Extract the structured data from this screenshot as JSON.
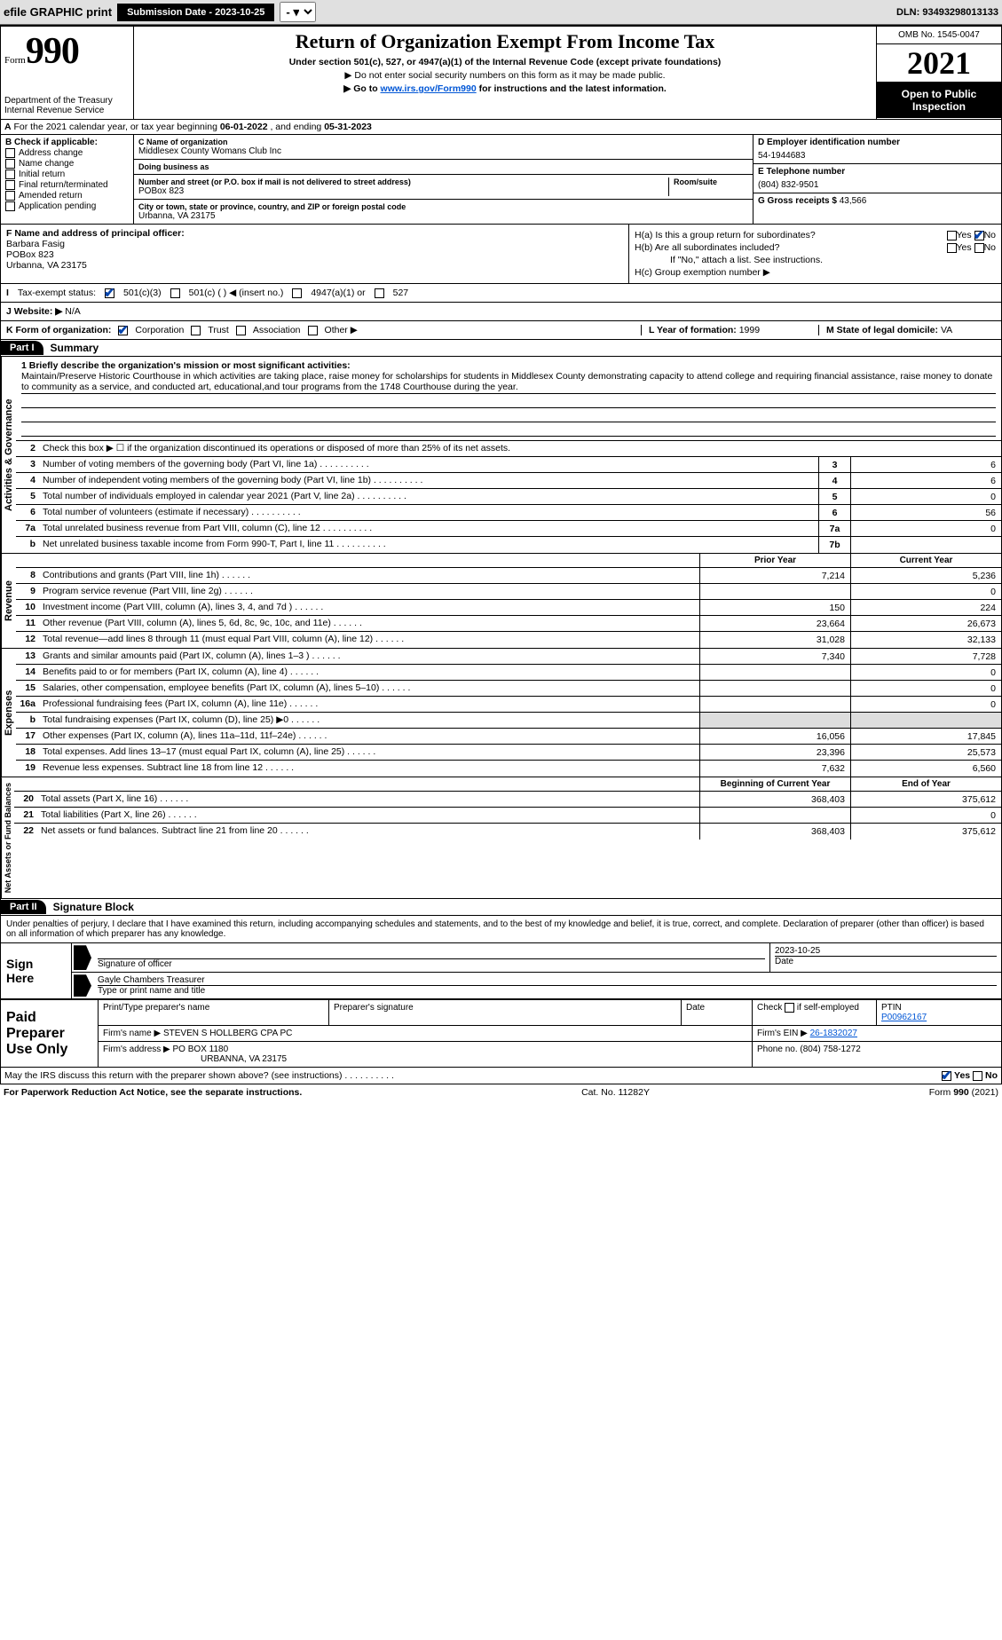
{
  "topbar": {
    "efile": "efile GRAPHIC print",
    "submission_label": "Submission Date - 2023-10-25",
    "dln": "DLN: 93493298013133"
  },
  "header": {
    "form_label": "Form",
    "form_number": "990",
    "title": "Return of Organization Exempt From Income Tax",
    "subtitle": "Under section 501(c), 527, or 4947(a)(1) of the Internal Revenue Code (except private foundations)",
    "ssn_note": "▶ Do not enter social security numbers on this form as it may be made public.",
    "goto_prefix": "▶ Go to ",
    "goto_link": "www.irs.gov/Form990",
    "goto_suffix": " for instructions and the latest information.",
    "dept": "Department of the Treasury",
    "irs": "Internal Revenue Service",
    "omb": "OMB No. 1545-0047",
    "year": "2021",
    "open_pub": "Open to Public Inspection"
  },
  "A": {
    "text_a": "For the 2021 calendar year, or tax year beginning ",
    "begin": "06-01-2022",
    "text_b": " , and ending ",
    "end": "05-31-2023"
  },
  "B": {
    "label": "B Check if applicable:",
    "opts": [
      "Address change",
      "Name change",
      "Initial return",
      "Final return/terminated",
      "Amended return",
      "Application pending"
    ]
  },
  "C": {
    "name_lbl": "C Name of organization",
    "name": "Middlesex County Womans Club Inc",
    "dba_lbl": "Doing business as",
    "dba": "",
    "street_lbl": "Number and street (or P.O. box if mail is not delivered to street address)",
    "room_lbl": "Room/suite",
    "street": "POBox 823",
    "city_lbl": "City or town, state or province, country, and ZIP or foreign postal code",
    "city": "Urbanna, VA  23175"
  },
  "D": {
    "lbl": "D Employer identification number",
    "val": "54-1944683"
  },
  "E": {
    "lbl": "E Telephone number",
    "val": "(804) 832-9501"
  },
  "G": {
    "lbl": "G Gross receipts $",
    "val": "43,566"
  },
  "F": {
    "lbl": "F  Name and address of principal officer:",
    "name": "Barbara Fasig",
    "addr1": "POBox 823",
    "addr2": "Urbanna, VA  23175"
  },
  "H": {
    "a": "H(a)  Is this a group return for subordinates?",
    "b": "H(b)  Are all subordinates included?",
    "b_note": "If \"No,\" attach a list. See instructions.",
    "c": "H(c)  Group exemption number ▶",
    "yes": "Yes",
    "no": "No"
  },
  "I": {
    "lbl": "Tax-exempt status:",
    "o1": "501(c)(3)",
    "o2": "501(c) (  ) ◀ (insert no.)",
    "o3": "4947(a)(1) or",
    "o4": "527"
  },
  "J": {
    "lbl": "J   Website: ▶",
    "val": "N/A"
  },
  "K": {
    "lbl": "K Form of organization:",
    "o1": "Corporation",
    "o2": "Trust",
    "o3": "Association",
    "o4": "Other ▶"
  },
  "L": {
    "lbl": "L Year of formation:",
    "val": "1999"
  },
  "M": {
    "lbl": "M State of legal domicile:",
    "val": "VA"
  },
  "parts": {
    "p1": "Part I",
    "p1_title": "Summary",
    "p2": "Part II",
    "p2_title": "Signature Block"
  },
  "summary": {
    "q1_lbl": "1   Briefly describe the organization's mission or most significant activities:",
    "q1_txt": "Maintain/Preserve Historic Courthouse in which activities are taking place, raise money for scholarships for students in Middlesex County demonstrating capacity to attend college and requiring financial assistance, raise money to donate to community as a service, and conducted art, educational,and tour programs from the 1748 Courthouse during the year.",
    "q2": "Check this box ▶ ☐  if the organization discontinued its operations or disposed of more than 25% of its net assets.",
    "lines_gov": [
      {
        "n": "3",
        "t": "Number of voting members of the governing body (Part VI, line 1a)",
        "b": "3",
        "v": "6"
      },
      {
        "n": "4",
        "t": "Number of independent voting members of the governing body (Part VI, line 1b)",
        "b": "4",
        "v": "6"
      },
      {
        "n": "5",
        "t": "Total number of individuals employed in calendar year 2021 (Part V, line 2a)",
        "b": "5",
        "v": "0"
      },
      {
        "n": "6",
        "t": "Total number of volunteers (estimate if necessary)",
        "b": "6",
        "v": "56"
      },
      {
        "n": "7a",
        "t": "Total unrelated business revenue from Part VIII, column (C), line 12",
        "b": "7a",
        "v": "0"
      },
      {
        "n": "b",
        "t": "Net unrelated business taxable income from Form 990-T, Part I, line 11",
        "b": "7b",
        "v": ""
      }
    ],
    "col_prior": "Prior Year",
    "col_current": "Current Year",
    "lines_rev": [
      {
        "n": "8",
        "t": "Contributions and grants (Part VIII, line 1h)",
        "p": "7,214",
        "c": "5,236"
      },
      {
        "n": "9",
        "t": "Program service revenue (Part VIII, line 2g)",
        "p": "",
        "c": "0"
      },
      {
        "n": "10",
        "t": "Investment income (Part VIII, column (A), lines 3, 4, and 7d )",
        "p": "150",
        "c": "224"
      },
      {
        "n": "11",
        "t": "Other revenue (Part VIII, column (A), lines 5, 6d, 8c, 9c, 10c, and 11e)",
        "p": "23,664",
        "c": "26,673"
      },
      {
        "n": "12",
        "t": "Total revenue—add lines 8 through 11 (must equal Part VIII, column (A), line 12)",
        "p": "31,028",
        "c": "32,133"
      }
    ],
    "lines_exp": [
      {
        "n": "13",
        "t": "Grants and similar amounts paid (Part IX, column (A), lines 1–3 )",
        "p": "7,340",
        "c": "7,728"
      },
      {
        "n": "14",
        "t": "Benefits paid to or for members (Part IX, column (A), line 4)",
        "p": "",
        "c": "0"
      },
      {
        "n": "15",
        "t": "Salaries, other compensation, employee benefits (Part IX, column (A), lines 5–10)",
        "p": "",
        "c": "0"
      },
      {
        "n": "16a",
        "t": "Professional fundraising fees (Part IX, column (A), line 11e)",
        "p": "",
        "c": "0"
      },
      {
        "n": "b",
        "t": "Total fundraising expenses (Part IX, column (D), line 25) ▶0",
        "p": "__shade__",
        "c": "__shade__"
      },
      {
        "n": "17",
        "t": "Other expenses (Part IX, column (A), lines 11a–11d, 11f–24e)",
        "p": "16,056",
        "c": "17,845"
      },
      {
        "n": "18",
        "t": "Total expenses. Add lines 13–17 (must equal Part IX, column (A), line 25)",
        "p": "23,396",
        "c": "25,573"
      },
      {
        "n": "19",
        "t": "Revenue less expenses. Subtract line 18 from line 12",
        "p": "7,632",
        "c": "6,560"
      }
    ],
    "col_begin": "Beginning of Current Year",
    "col_end": "End of Year",
    "lines_net": [
      {
        "n": "20",
        "t": "Total assets (Part X, line 16)",
        "p": "368,403",
        "c": "375,612"
      },
      {
        "n": "21",
        "t": "Total liabilities (Part X, line 26)",
        "p": "",
        "c": "0"
      },
      {
        "n": "22",
        "t": "Net assets or fund balances. Subtract line 21 from line 20",
        "p": "368,403",
        "c": "375,612"
      }
    ],
    "vtabs": {
      "gov": "Activities & Governance",
      "rev": "Revenue",
      "exp": "Expenses",
      "net": "Net Assets or Fund Balances"
    }
  },
  "sig": {
    "decl": "Under penalties of perjury, I declare that I have examined this return, including accompanying schedules and statements, and to the best of my knowledge and belief, it is true, correct, and complete. Declaration of preparer (other than officer) is based on all information of which preparer has any knowledge.",
    "sign": "Sign",
    "here": "Here",
    "sig_of_officer": "Signature of officer",
    "date_lbl": "Date",
    "date": "2023-10-25",
    "name": "Gayle Chambers Treasurer",
    "name_lbl": "Type or print name and title"
  },
  "paid": {
    "title1": "Paid",
    "title2": "Preparer",
    "title3": "Use Only",
    "h1": "Print/Type preparer's name",
    "h2": "Preparer's signature",
    "h3": "Date",
    "h4_a": "Check",
    "h4_b": "if self-employed",
    "h5": "PTIN",
    "ptin": "P00962167",
    "firm_lbl": "Firm's name    ▶",
    "firm": "STEVEN S HOLLBERG CPA PC",
    "ein_lbl": "Firm's EIN ▶",
    "ein": "26-1832027",
    "addr_lbl": "Firm's address ▶",
    "addr1": "PO BOX 1180",
    "addr2": "URBANNA, VA  23175",
    "phone_lbl": "Phone no.",
    "phone": "(804) 758-1272"
  },
  "footer": {
    "discuss": "May the IRS discuss this return with the preparer shown above? (see instructions)",
    "yes": "Yes",
    "no": "No",
    "pra": "For Paperwork Reduction Act Notice, see the separate instructions.",
    "cat": "Cat. No. 11282Y",
    "form": "Form 990 (2021)"
  }
}
